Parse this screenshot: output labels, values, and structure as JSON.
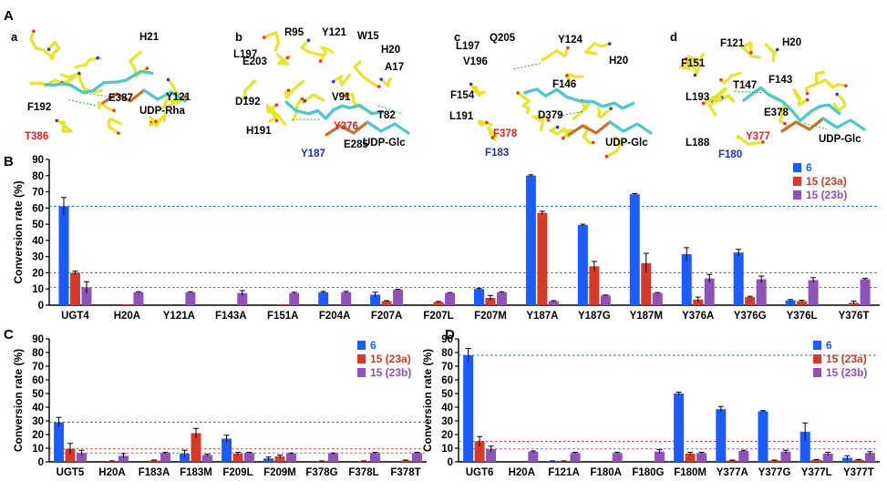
{
  "figure": {
    "panel_letters": [
      "A",
      "B",
      "C",
      "D"
    ],
    "subpanels": [
      {
        "letter": "a",
        "sugar": "UDP-Rha",
        "residues": [
          {
            "label": "H21",
            "color": "black"
          },
          {
            "label": "E387",
            "color": "black"
          },
          {
            "label": "Y121",
            "color": "black"
          },
          {
            "label": "F192",
            "color": "black"
          },
          {
            "label": "T386",
            "color": "red"
          }
        ]
      },
      {
        "letter": "b",
        "sugar": "UDP-Glc",
        "residues": [
          {
            "label": "R95",
            "color": "black"
          },
          {
            "label": "Y121",
            "color": "black"
          },
          {
            "label": "W15",
            "color": "black"
          },
          {
            "label": "H20",
            "color": "black"
          },
          {
            "label": "L197",
            "color": "black"
          },
          {
            "label": "E203",
            "color": "black"
          },
          {
            "label": "A17",
            "color": "black"
          },
          {
            "label": "V91",
            "color": "black"
          },
          {
            "label": "T82",
            "color": "black"
          },
          {
            "label": "D192",
            "color": "black"
          },
          {
            "label": "Y376",
            "color": "red"
          },
          {
            "label": "H191",
            "color": "black"
          },
          {
            "label": "E285",
            "color": "black"
          },
          {
            "label": "Y187",
            "color": "blue"
          }
        ]
      },
      {
        "letter": "c",
        "sugar": "UDP-Glc",
        "residues": [
          {
            "label": "Q205",
            "color": "black"
          },
          {
            "label": "Y124",
            "color": "black"
          },
          {
            "label": "L197",
            "color": "black"
          },
          {
            "label": "V196",
            "color": "black"
          },
          {
            "label": "H20",
            "color": "black"
          },
          {
            "label": "F154",
            "color": "black"
          },
          {
            "label": "F146",
            "color": "black"
          },
          {
            "label": "L191",
            "color": "black"
          },
          {
            "label": "D379",
            "color": "black"
          },
          {
            "label": "F378",
            "color": "red"
          },
          {
            "label": "F183",
            "color": "blue"
          }
        ]
      },
      {
        "letter": "d",
        "sugar": "UDP-Glc",
        "residues": [
          {
            "label": "F121",
            "color": "black"
          },
          {
            "label": "H20",
            "color": "black"
          },
          {
            "label": "F151",
            "color": "black"
          },
          {
            "label": "F143",
            "color": "black"
          },
          {
            "label": "T147",
            "color": "black"
          },
          {
            "label": "L193",
            "color": "black"
          },
          {
            "label": "E378",
            "color": "black"
          },
          {
            "label": "L188",
            "color": "black"
          },
          {
            "label": "Y377",
            "color": "red"
          },
          {
            "label": "F180",
            "color": "blue"
          }
        ]
      }
    ]
  },
  "colors": {
    "blue": "#1a5cff",
    "red": "#d63a2a",
    "purple": "#8f52b8",
    "residue_red": "#e8201c",
    "residue_blue": "#1f2bd8",
    "stick_yellow": "#e6e629",
    "stick_cyan": "#4ec9c9",
    "stick_orange": "#c8702a"
  },
  "legend_labels": [
    "6",
    "15 (23a)",
    "15 (23b)"
  ],
  "chart_data": [
    {
      "panel": "B",
      "type": "bar",
      "ylabel": "Conversion rate (%)",
      "ylim": [
        0,
        90
      ],
      "yticks": [
        0,
        10,
        20,
        30,
        40,
        50,
        60,
        70,
        80,
        90
      ],
      "categories": [
        "UGT4",
        "H20A",
        "Y121A",
        "F143A",
        "F151A",
        "F204A",
        "F207A",
        "F207L",
        "F207M",
        "Y187A",
        "Y187G",
        "Y187M",
        "Y376A",
        "Y376G",
        "Y376L",
        "Y376T"
      ],
      "series": [
        {
          "name": "6",
          "color": "#1a5cff",
          "values": [
            61,
            0,
            0,
            0,
            0,
            8,
            6.5,
            0,
            10,
            80,
            49.5,
            68.5,
            31.5,
            32.5,
            3,
            0
          ],
          "errors": [
            5.5,
            0,
            0,
            0,
            0,
            0.5,
            1.5,
            0,
            0.5,
            0.5,
            0.5,
            0.5,
            4,
            2,
            0.5,
            0
          ]
        },
        {
          "name": "15 (23a)",
          "color": "#d63a2a",
          "values": [
            20,
            0.5,
            0,
            0,
            0.5,
            0,
            2.5,
            2,
            4.5,
            57,
            24,
            26,
            3.5,
            5,
            2.5,
            1.5
          ],
          "errors": [
            1,
            0,
            0,
            0,
            0,
            0,
            0.3,
            0.3,
            1.5,
            1,
            3,
            6,
            1.5,
            0.5,
            0.5,
            1
          ]
        },
        {
          "name": "15 (23b)",
          "color": "#8f52b8",
          "values": [
            11,
            8,
            8,
            7.5,
            7.5,
            8,
            9.5,
            7.5,
            8,
            2.5,
            6,
            7.5,
            16.5,
            16,
            15.5,
            16
          ],
          "errors": [
            3.5,
            0.3,
            0.3,
            1.5,
            0.5,
            0.5,
            0.3,
            0.3,
            0.3,
            0.3,
            0.3,
            0.3,
            2.5,
            2,
            1.5,
            0.5
          ]
        }
      ],
      "reference_lines": [
        {
          "value": 61,
          "color": "#1a5cff"
        },
        {
          "value": 20,
          "color": "#d63a2a"
        },
        {
          "value": 11,
          "color": "#8f52b8"
        }
      ],
      "legend": "top-right"
    },
    {
      "panel": "C",
      "type": "bar",
      "ylabel": "Conversion rate (%)",
      "ylim": [
        0,
        90
      ],
      "yticks": [
        0,
        10,
        20,
        30,
        40,
        50,
        60,
        70,
        80,
        90
      ],
      "categories": [
        "UGT5",
        "H20A",
        "F183A",
        "F183M",
        "F209L",
        "F209M",
        "F378G",
        "F378L",
        "F378T"
      ],
      "series": [
        {
          "name": "6",
          "color": "#1a5cff",
          "values": [
            29,
            0,
            0,
            6,
            17,
            2.5,
            0,
            0,
            0
          ],
          "errors": [
            3.5,
            0,
            0,
            2.5,
            2.5,
            1,
            0,
            0,
            0
          ]
        },
        {
          "name": "15 (23a)",
          "color": "#d63a2a",
          "values": [
            9.5,
            0.5,
            1,
            21,
            6,
            4,
            0.5,
            0.5,
            1
          ],
          "errors": [
            4,
            0.2,
            0.3,
            3.5,
            1,
            1,
            0.2,
            0.2,
            0.3
          ]
        },
        {
          "name": "15 (23b)",
          "color": "#8f52b8",
          "values": [
            6.5,
            4.5,
            6.5,
            5,
            6.5,
            6,
            6,
            6.5,
            6.5
          ],
          "errors": [
            2,
            1.5,
            0.5,
            0.5,
            0.5,
            0.5,
            0.5,
            0.5,
            0.5
          ]
        }
      ],
      "reference_lines": [
        {
          "value": 29,
          "color": "#1a5cff"
        },
        {
          "value": 9.5,
          "color": "#d63a2a"
        },
        {
          "value": 6.5,
          "color": "#8f52b8"
        }
      ],
      "legend": "top-right"
    },
    {
      "panel": "D",
      "type": "bar",
      "ylabel": "Conversion rate (%)",
      "ylim": [
        0,
        90
      ],
      "yticks": [
        0,
        10,
        20,
        30,
        40,
        50,
        60,
        70,
        80,
        90
      ],
      "categories": [
        "UGT6",
        "H20A",
        "F121A",
        "F180A",
        "F180G",
        "F180M",
        "Y377A",
        "Y377G",
        "Y377L",
        "Y377T"
      ],
      "series": [
        {
          "name": "6",
          "color": "#1a5cff",
          "values": [
            78,
            0,
            0.5,
            0,
            0,
            50,
            38.5,
            37,
            22,
            3
          ],
          "errors": [
            5,
            0,
            0.2,
            0,
            0,
            1,
            2,
            0.5,
            6.5,
            1.5
          ]
        },
        {
          "name": "15 (23a)",
          "color": "#d63a2a",
          "values": [
            15,
            0,
            0.5,
            0,
            0,
            6,
            1,
            1,
            1.5,
            1.5
          ],
          "errors": [
            3.5,
            0,
            0.2,
            0,
            0,
            1,
            0.3,
            0.3,
            0.3,
            0.3
          ]
        },
        {
          "name": "15 (23b)",
          "color": "#8f52b8",
          "values": [
            9.5,
            7.5,
            6.5,
            6.5,
            7.5,
            6.5,
            8,
            7.5,
            6,
            6.5
          ],
          "errors": [
            2,
            0.5,
            0.5,
            0.5,
            1.5,
            0.5,
            0.5,
            1,
            1,
            1
          ]
        }
      ],
      "reference_lines": [
        {
          "value": 78,
          "color": "#1a5cff"
        },
        {
          "value": 15,
          "color": "#d63a2a"
        },
        {
          "value": 9.5,
          "color": "#8f52b8"
        }
      ],
      "legend": "top-right"
    }
  ]
}
